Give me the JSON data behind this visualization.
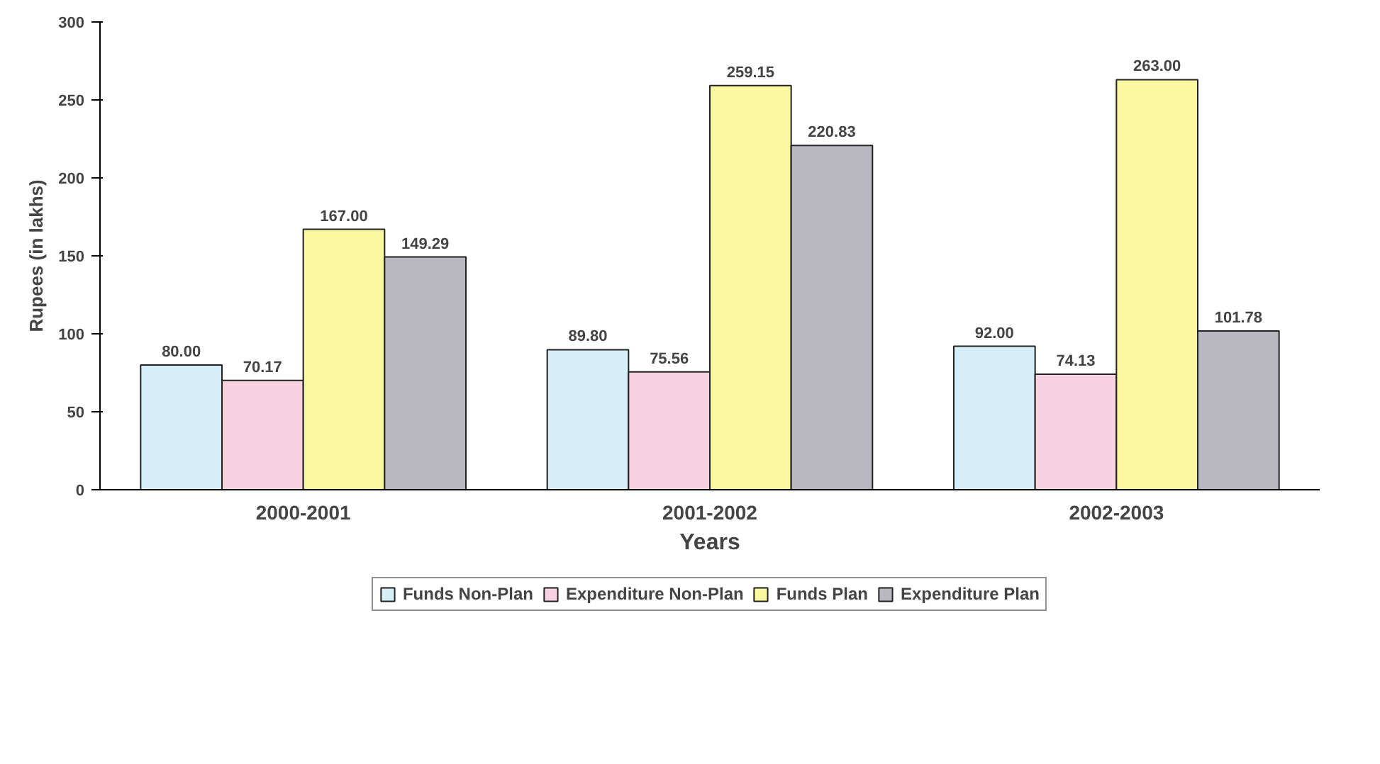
{
  "chart_data": {
    "type": "bar",
    "xlabel": "Years",
    "ylabel": "Rupees (in lakhs)",
    "categories": [
      "2000-2001",
      "2001-2002",
      "2002-2003"
    ],
    "series": [
      {
        "name": "Funds Non-Plan",
        "color": "#d6eef8",
        "values": [
          80.0,
          89.8,
          92.0
        ],
        "value_labels": [
          "80.00",
          "89.80",
          "92.00"
        ]
      },
      {
        "name": "Expenditure Non-Plan",
        "color": "#f7d2e0",
        "values": [
          70.17,
          75.56,
          74.13
        ],
        "value_labels": [
          "70.17",
          "75.56",
          "74.13"
        ]
      },
      {
        "name": "Funds Plan",
        "color": "#fbf8a2",
        "values": [
          167.0,
          259.15,
          263.0
        ],
        "value_labels": [
          "167.00",
          "259.15",
          "263.00"
        ]
      },
      {
        "name": "Expenditure Plan",
        "color": "#b9b8c0",
        "values": [
          149.29,
          220.83,
          101.78
        ],
        "value_labels": [
          "149.29",
          "220.83",
          "101.78"
        ]
      }
    ],
    "ylim": [
      0,
      300
    ],
    "yticks": [
      0,
      50,
      100,
      150,
      200,
      250,
      300
    ],
    "grid": false,
    "legend": "bottom"
  }
}
